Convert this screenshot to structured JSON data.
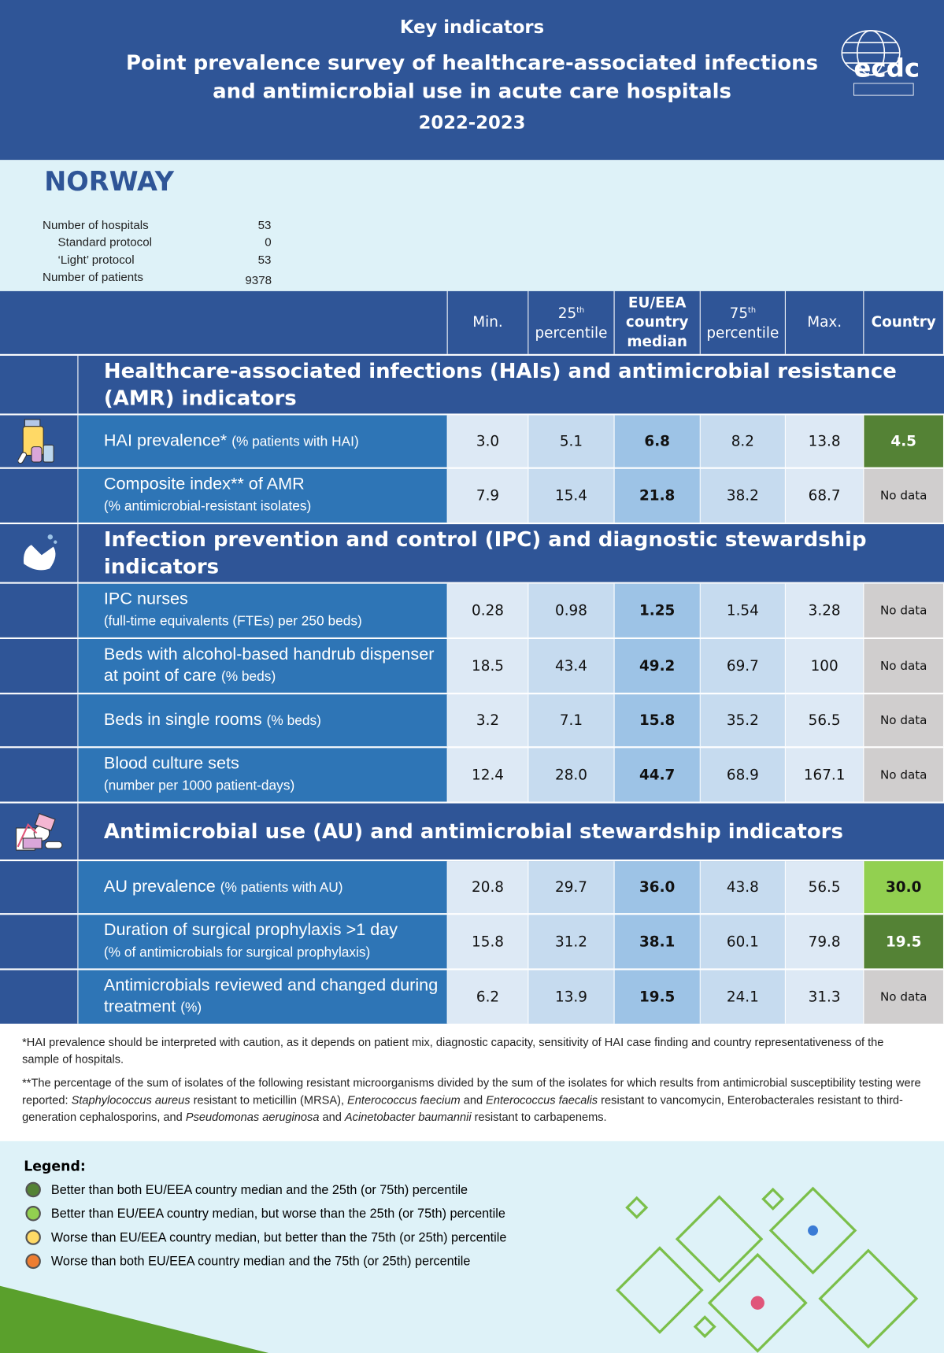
{
  "header": {
    "kicker": "Key indicators",
    "title_line1": "Point prevalence survey of healthcare-associated infections",
    "title_line2": "and antimicrobial use in acute care hospitals",
    "years": "2022-2023",
    "logo_text": "ecdc"
  },
  "country": "NORWAY",
  "stats": [
    {
      "label": "Number of hospitals",
      "value": "53"
    },
    {
      "label": "Standard protocol",
      "value": "0"
    },
    {
      "label": "‘Light’ protocol",
      "value": "53"
    },
    {
      "label": "Number of patients",
      "value": "9378"
    }
  ],
  "columns": {
    "min": "Min.",
    "p25": "25",
    "p25_sup": "th",
    "p25_sub": "percentile",
    "median1": "EU/EEA",
    "median2": "country",
    "median3": "median",
    "p75": "75",
    "p75_sup": "th",
    "p75_sub": "percentile",
    "max": "Max.",
    "country": "Country"
  },
  "sections": [
    {
      "title": "Healthcare-associated infections (HAIs) and antimicrobial resistance (AMR) indicators",
      "icon": "medicine-bottle-icon",
      "rows": [
        {
          "label": "HAI prevalence*",
          "sub": "(% patients with HAI)",
          "values": [
            "3.0",
            "5.1",
            "6.8",
            "8.2",
            "13.8"
          ],
          "country": "4.5",
          "status": "dark-green",
          "icon": "pills-icon"
        },
        {
          "label": "Composite index** of AMR",
          "sub": "(% antimicrobial-resistant isolates)",
          "values": [
            "7.9",
            "15.4",
            "21.8",
            "38.2",
            "68.7"
          ],
          "country": "No data",
          "status": "none"
        }
      ]
    },
    {
      "title": "Infection prevention and control (IPC) and diagnostic stewardship indicators",
      "icon": "hand-washing-icon",
      "rows": [
        {
          "label": "IPC nurses",
          "sub": "(full-time equivalents (FTEs) per 250 beds)",
          "values": [
            "0.28",
            "0.98",
            "1.25",
            "1.54",
            "3.28"
          ],
          "country": "No data",
          "status": "none"
        },
        {
          "label": "Beds with alcohol-based handrub dispenser at point of care",
          "sub": "(% beds)",
          "values": [
            "18.5",
            "43.4",
            "49.2",
            "69.7",
            "100"
          ],
          "country": "No data",
          "status": "none"
        },
        {
          "label": "Beds in single rooms",
          "sub": "(% beds)",
          "values": [
            "3.2",
            "7.1",
            "15.8",
            "35.2",
            "56.5"
          ],
          "country": "No data",
          "status": "none"
        },
        {
          "label": "Blood culture sets",
          "sub": "(number per 1000 patient-days)",
          "values": [
            "12.4",
            "28.0",
            "44.7",
            "68.9",
            "167.1"
          ],
          "country": "No data",
          "status": "none"
        }
      ]
    },
    {
      "title": "Antimicrobial use (AU) and antimicrobial stewardship indicators",
      "icon": "antimicrobials-icon",
      "rows": [
        {
          "label": "AU prevalence",
          "sub": "(% patients with AU)",
          "values": [
            "20.8",
            "29.7",
            "36.0",
            "43.8",
            "56.5"
          ],
          "country": "30.0",
          "status": "light-green"
        },
        {
          "label": "Duration of surgical prophylaxis >1 day",
          "sub": "(% of antimicrobials for surgical prophylaxis)",
          "values": [
            "15.8",
            "31.2",
            "38.1",
            "60.1",
            "79.8"
          ],
          "country": "19.5",
          "status": "dark-green"
        },
        {
          "label": "Antimicrobials reviewed and changed during treatment",
          "sub": "(%)",
          "values": [
            "6.2",
            "13.9",
            "19.5",
            "24.1",
            "31.3"
          ],
          "country": "No data",
          "status": "none"
        }
      ]
    }
  ],
  "notes": {
    "n1": "*HAI prevalence should be interpreted with caution, as it depends on patient mix, diagnostic capacity, sensitivity of HAI case finding and country representativeness of the sample of hospitals.",
    "n2a": "**The percentage of the sum of isolates of the following resistant microorganisms divided by the sum of the isolates for which results from antimicrobial susceptibility testing were reported: ",
    "sa": "Staphylococcus aureus",
    "n2b": " resistant to meticillin (MRSA), ",
    "efm": "Enterococcus faecium",
    "n2c": " and ",
    "efs": "Enterococcus faecalis",
    "n2d": " resistant to vancomycin, Enterobacterales resistant to third-generation cephalosporins, and ",
    "pa": "Pseudomonas aeruginosa",
    "n2e": " and ",
    "ab": "Acinetobacter baumannii",
    "n2f": " resistant to carbapenems."
  },
  "legend": {
    "title": "Legend:",
    "items": [
      {
        "text": "Better than both EU/EEA country median and the 25th (or 75th) percentile",
        "color": "#548235"
      },
      {
        "text": "Better than EU/EEA country median, but worse than the 25th (or 75th) percentile",
        "color": "#92d050"
      },
      {
        "text": "Worse than EU/EEA country median, but better than the 75th (or 25th) percentile",
        "color": "#ffd966"
      },
      {
        "text": "Worse than both EU/EEA country median and the 75th (or 25th) percentile",
        "color": "#ed7d31"
      }
    ]
  },
  "colors": {
    "header": "#2f5597",
    "label_bg": "#2e75b6",
    "dark_green": "#548235",
    "light_green": "#92d050",
    "no_data": "#d0cece"
  }
}
